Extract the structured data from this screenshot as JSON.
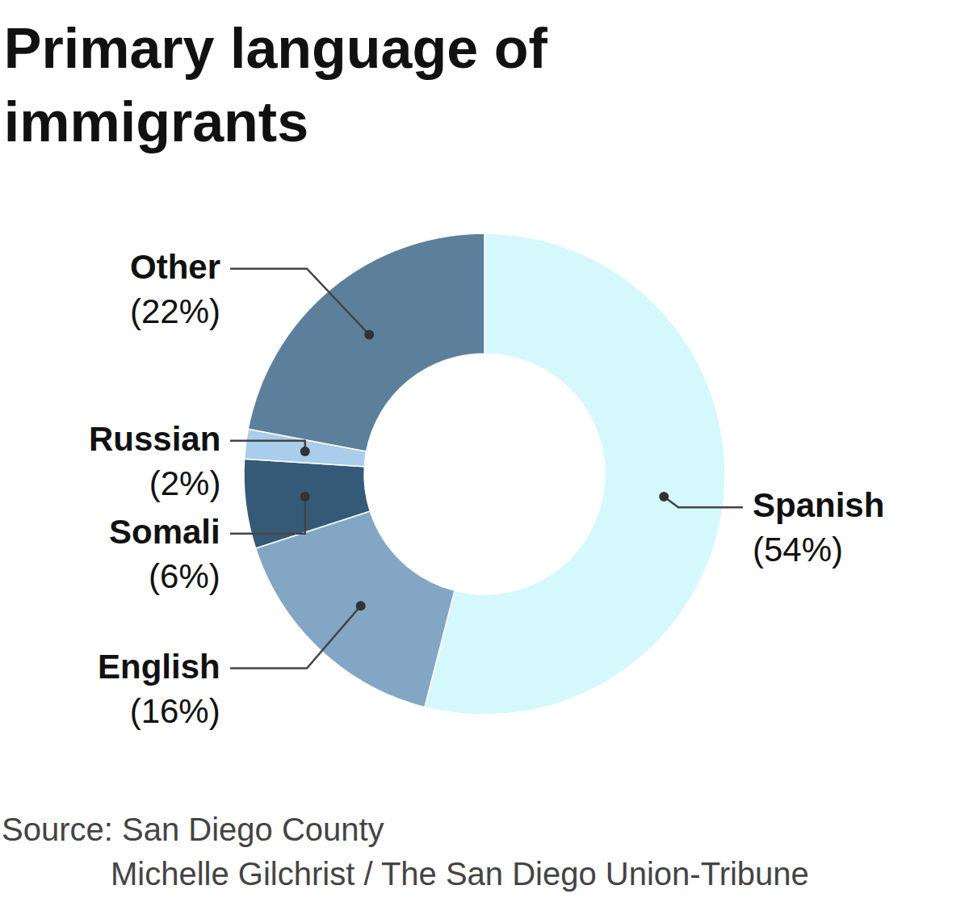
{
  "chart_data": {
    "type": "pie",
    "title": "Primary language of\nimmigrants",
    "categories": [
      "Spanish",
      "English",
      "Somali",
      "Russian",
      "Other"
    ],
    "values": [
      54,
      16,
      6,
      2,
      22
    ],
    "value_labels": [
      "(54%)",
      "(16%)",
      "(6%)",
      "(2%)",
      "(22%)"
    ],
    "colors": [
      "#d5f8fd",
      "#82a6c4",
      "#345a78",
      "#a9cdea",
      "#5c809c"
    ],
    "data_labels": true,
    "source": "Source: San Diego County",
    "credit": "Michelle Gilchrist / The San Diego Union-Tribune"
  }
}
